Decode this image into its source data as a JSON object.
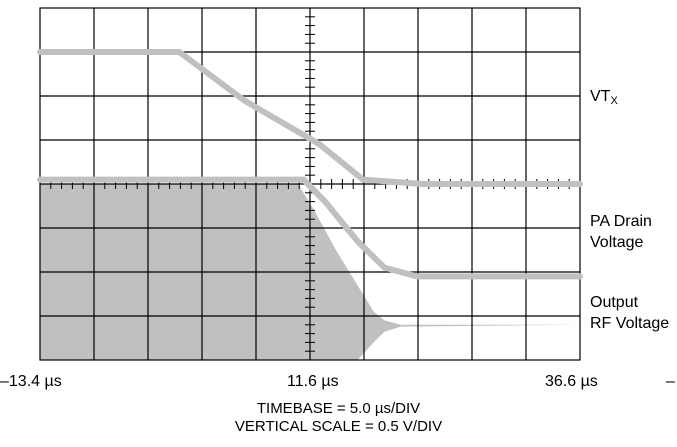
{
  "chart_data": {
    "type": "line",
    "title": "",
    "x_unit": "µs",
    "x_ticks": [
      {
        "value": -13.4,
        "label": "–13.4 µs"
      },
      {
        "value": 11.6,
        "label": "11.6 µs"
      },
      {
        "value": 36.6,
        "label": "36.6 µs"
      }
    ],
    "xlim": [
      -13.4,
      36.6
    ],
    "ylim": [
      -2.0,
      2.0
    ],
    "grid": true,
    "divisions": {
      "horizontal": 10,
      "vertical": 8
    },
    "timebase_note": "TIMEBASE = 5.0 µs/DIV",
    "vertical_note": "VERTICAL SCALE = 0.5 V/DIV",
    "series": [
      {
        "name": "VT",
        "name_subscript": "X",
        "kind": "line",
        "color": "#c0c0c0",
        "x": [
          -13.4,
          -0.5,
          5.5,
          12.5,
          16.5,
          22.0,
          36.6
        ],
        "y": [
          1.5,
          1.5,
          0.95,
          0.45,
          0.05,
          0.0,
          0.0
        ]
      },
      {
        "name": "PA Drain",
        "name_line2": "Voltage",
        "kind": "line",
        "color": "#c0c0c0",
        "x": [
          -13.4,
          11.0,
          13.0,
          16.0,
          18.5,
          21.5,
          36.6
        ],
        "y": [
          0.05,
          0.05,
          -0.2,
          -0.65,
          -0.95,
          -1.05,
          -1.05
        ]
      },
      {
        "name": "Output",
        "name_line2": "RF Voltage",
        "kind": "envelope",
        "color": "#c0c0c0",
        "x": [
          -13.4,
          10.5,
          12.0,
          14.0,
          16.0,
          17.5,
          18.5,
          20.0,
          36.6
        ],
        "upper": [
          0.0,
          0.0,
          -0.3,
          -0.75,
          -1.15,
          -1.45,
          -1.55,
          -1.6,
          -1.6
        ],
        "lower": [
          -2.0,
          -2.0,
          -2.0,
          -2.0,
          -2.0,
          -1.8,
          -1.68,
          -1.62,
          -1.6
        ]
      }
    ]
  },
  "labels": {
    "vt_main": "VT",
    "vt_sub": "X",
    "pa_line1": "PA Drain",
    "pa_line2": "Voltage",
    "out_line1": "Output",
    "out_line2": "RF Voltage",
    "x_left": "–13.4 µs",
    "x_mid": "11.6 µs",
    "x_right": "36.6 µs",
    "x_edge": "–",
    "timebase": "TIMEBASE = 5.0 µs/DIV",
    "vertical": "VERTICAL SCALE = 0.5 V/DIV"
  }
}
